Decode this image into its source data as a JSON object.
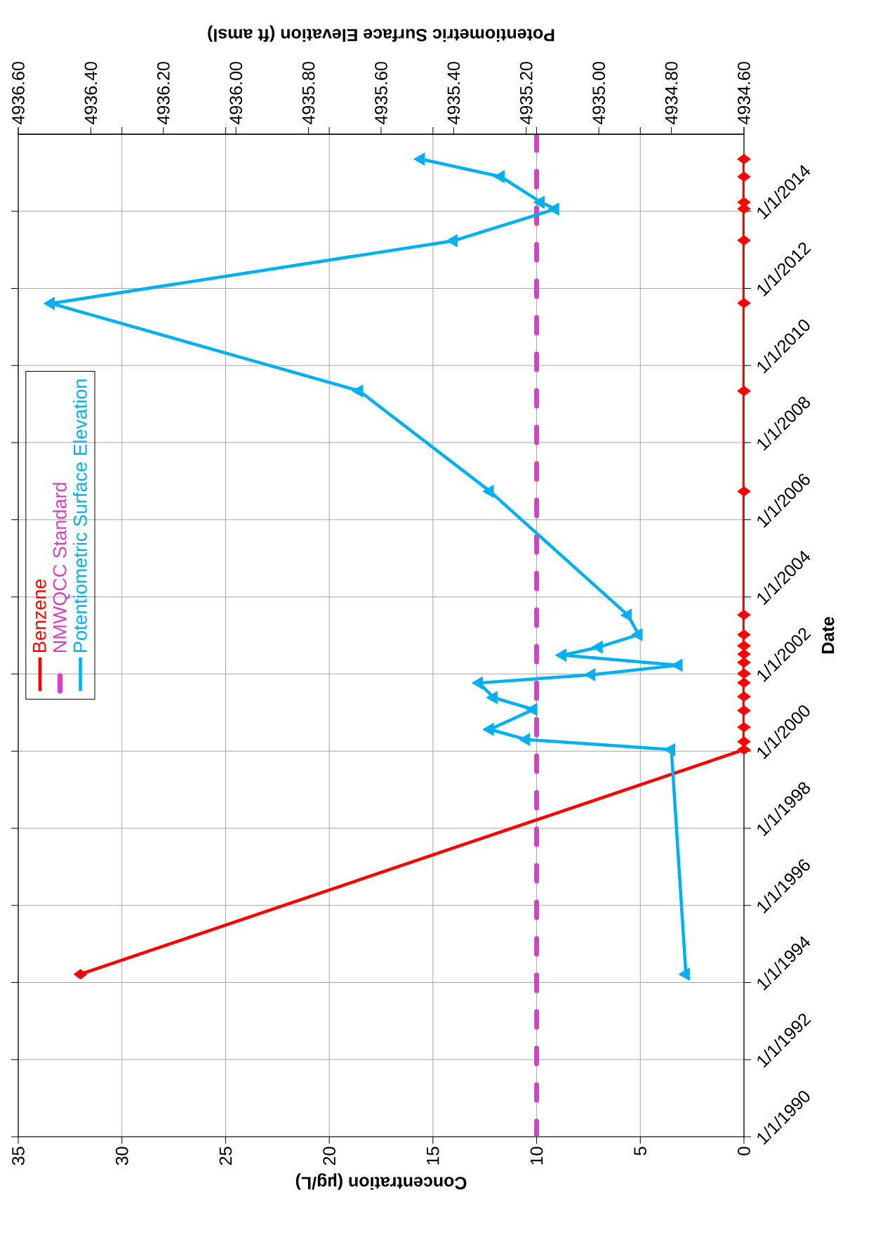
{
  "chart_data": {
    "type": "line",
    "orientation": "horizontal",
    "xlabel": "Concentration (µg/L)",
    "ylabel": "Date",
    "x2label": "Potentiometric Surface Elevation (ft amsl)",
    "ylim": [
      "1990-01-01",
      "2016-01-01"
    ],
    "yticks": [
      {
        "value": "1990-01-01",
        "label": "1/1/1990"
      },
      {
        "value": "1992-01-01",
        "label": "1/1/1992"
      },
      {
        "value": "1994-01-01",
        "label": "1/1/1994"
      },
      {
        "value": "1996-01-01",
        "label": "1/1/1996"
      },
      {
        "value": "1998-01-01",
        "label": "1/1/1998"
      },
      {
        "value": "2000-01-01",
        "label": "1/1/2000"
      },
      {
        "value": "2002-01-01",
        "label": "1/1/2002"
      },
      {
        "value": "2004-01-01",
        "label": "1/1/2004"
      },
      {
        "value": "2006-01-01",
        "label": "1/1/2006"
      },
      {
        "value": "2008-01-01",
        "label": "1/1/2008"
      },
      {
        "value": "2010-01-01",
        "label": "1/1/2010"
      },
      {
        "value": "2012-01-01",
        "label": "1/1/2012"
      },
      {
        "value": "2014-01-01",
        "label": "1/1/2014"
      }
    ],
    "xlim": [
      35,
      0
    ],
    "xticks": [
      35,
      30,
      25,
      20,
      15,
      10,
      5,
      0
    ],
    "x2lim": [
      4936.6,
      4934.6
    ],
    "x2ticks": [
      {
        "value": 4936.6,
        "label": "4936.60"
      },
      {
        "value": 4936.4,
        "label": "4936.40"
      },
      {
        "value": 4936.2,
        "label": "4936.20"
      },
      {
        "value": 4936.0,
        "label": "4936.00"
      },
      {
        "value": 4935.8,
        "label": "4935.80"
      },
      {
        "value": 4935.6,
        "label": "4935.60"
      },
      {
        "value": 4935.4,
        "label": "4935.40"
      },
      {
        "value": 4935.2,
        "label": "4935.20"
      },
      {
        "value": 4935.0,
        "label": "4935.00"
      },
      {
        "value": 4934.8,
        "label": "4934.80"
      },
      {
        "value": 4934.6,
        "label": "4934.60"
      }
    ],
    "grid": true,
    "legend": "top left",
    "line_style": "solid",
    "series": [
      {
        "name": "Benzene",
        "color": "#ff0000",
        "marker": "diamond",
        "x": [
          "1994-03-20",
          "2000-01-15",
          "2000-04-01",
          "2000-08-15",
          "2001-01-20",
          "2001-06-01",
          "2001-10-10",
          "2002-01-05",
          "2002-04-20",
          "2002-07-08",
          "2002-09-25",
          "2003-01-08",
          "2003-07-15",
          "2006-09-27",
          "2009-05-05",
          "2011-08-15",
          "2013-04-01",
          "2014-01-25",
          "2014-03-28",
          "2014-11-25",
          "2015-05-10"
        ],
        "values": [
          32.0,
          0,
          0,
          0,
          0,
          0,
          0,
          0,
          0,
          0,
          0,
          0,
          0,
          0,
          0,
          0,
          0,
          0,
          0,
          0,
          0
        ]
      },
      {
        "name": "NMWQCC Standard",
        "color": "#d63fc8",
        "marker": "none",
        "line_style": "dashed",
        "x": [
          "1990-01-01",
          "2016-01-01"
        ],
        "values": [
          10,
          10
        ]
      },
      {
        "name": "Potentiometric Surface Elevation",
        "color": "#00b0f0",
        "marker": "triangle",
        "axis": "x2",
        "x": [
          "1994-03-20",
          "2000-01-15",
          "2000-04-20",
          "2000-07-25",
          "2001-01-30",
          "2001-05-22",
          "2001-10-08",
          "2001-12-25",
          "2002-03-25",
          "2002-06-28",
          "2002-09-12",
          "2003-01-08",
          "2003-07-12",
          "2006-09-27",
          "2009-05-05",
          "2011-08-12",
          "2013-03-28",
          "2014-01-22",
          "2014-03-28",
          "2014-11-25",
          "2015-05-10"
        ],
        "values": [
          4934.76,
          4934.8,
          4935.2,
          4935.3,
          4935.18,
          4935.29,
          4935.33,
          4935.02,
          4934.78,
          4935.1,
          4935.0,
          4934.89,
          4934.92,
          4935.3,
          4935.66,
          4936.51,
          4935.4,
          4935.12,
          4935.16,
          4935.27,
          4935.49
        ]
      }
    ]
  }
}
